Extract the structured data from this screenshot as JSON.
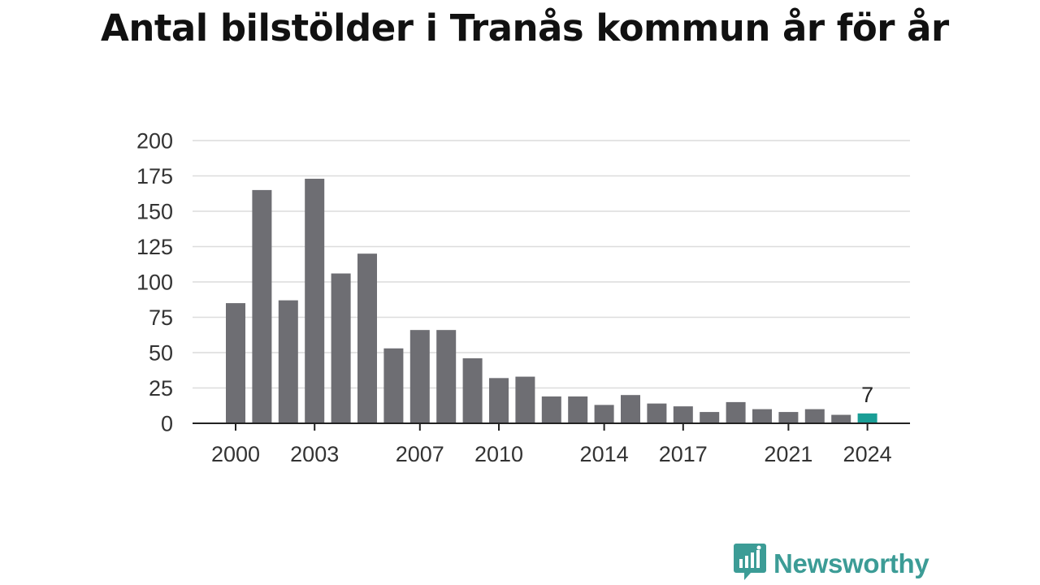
{
  "chart_data": {
    "type": "bar",
    "title": "Antal bilstölder i Tranås kommun år för år",
    "x": [
      2000,
      2001,
      2002,
      2003,
      2004,
      2005,
      2006,
      2007,
      2008,
      2009,
      2010,
      2011,
      2012,
      2013,
      2014,
      2015,
      2016,
      2017,
      2018,
      2019,
      2020,
      2021,
      2022,
      2023,
      2024
    ],
    "values": [
      85,
      165,
      87,
      173,
      106,
      120,
      53,
      66,
      66,
      46,
      32,
      33,
      19,
      19,
      13,
      20,
      14,
      12,
      8,
      15,
      10,
      8,
      10,
      6,
      7
    ],
    "x_tick_labels": [
      "2000",
      "2003",
      "2007",
      "2010",
      "2014",
      "2017",
      "2021",
      "2024"
    ],
    "y_ticks": [
      0,
      25,
      50,
      75,
      100,
      125,
      150,
      175,
      200
    ],
    "ylim": [
      0,
      200
    ],
    "grid": true,
    "highlight": {
      "x": 2024,
      "value_label": "7",
      "color": "#1a9e96"
    },
    "bar_color": "#6e6e73",
    "xlabel": "",
    "ylabel": ""
  },
  "brand": {
    "name": "Newsworthy",
    "color": "#3c9c96",
    "icon": "newsworthy-logo-icon"
  }
}
